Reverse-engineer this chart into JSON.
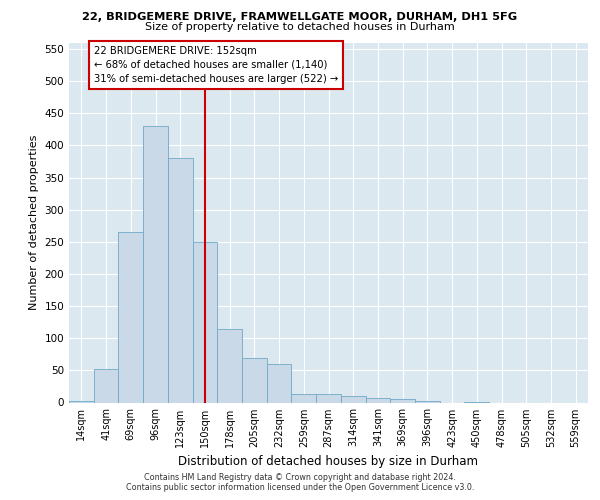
{
  "title_line1": "22, BRIDGEMERE DRIVE, FRAMWELLGATE MOOR, DURHAM, DH1 5FG",
  "title_line2": "Size of property relative to detached houses in Durham",
  "xlabel": "Distribution of detached houses by size in Durham",
  "ylabel": "Number of detached properties",
  "bar_labels": [
    "14sqm",
    "41sqm",
    "69sqm",
    "96sqm",
    "123sqm",
    "150sqm",
    "178sqm",
    "205sqm",
    "232sqm",
    "259sqm",
    "287sqm",
    "314sqm",
    "341sqm",
    "369sqm",
    "396sqm",
    "423sqm",
    "450sqm",
    "478sqm",
    "505sqm",
    "532sqm",
    "559sqm"
  ],
  "bar_heights": [
    3,
    52,
    265,
    430,
    380,
    250,
    115,
    70,
    60,
    14,
    13,
    10,
    7,
    5,
    2,
    0,
    1,
    0,
    0,
    0,
    0
  ],
  "bar_color": "#c9d9e8",
  "bar_edge_color": "#6fa8c8",
  "vline_x_index": 5,
  "vline_color": "#cc0000",
  "annotation_text": "22 BRIDGEMERE DRIVE: 152sqm\n← 68% of detached houses are smaller (1,140)\n31% of semi-detached houses are larger (522) →",
  "annotation_box_color": "#ffffff",
  "annotation_box_edge": "#cc0000",
  "ylim": [
    0,
    560
  ],
  "yticks": [
    0,
    50,
    100,
    150,
    200,
    250,
    300,
    350,
    400,
    450,
    500,
    550
  ],
  "footer1": "Contains HM Land Registry data © Crown copyright and database right 2024.",
  "footer2": "Contains public sector information licensed under the Open Government Licence v3.0.",
  "bg_color": "#dce8f0",
  "grid_color": "#ffffff",
  "fig_width": 6.0,
  "fig_height": 5.0,
  "fig_dpi": 100
}
